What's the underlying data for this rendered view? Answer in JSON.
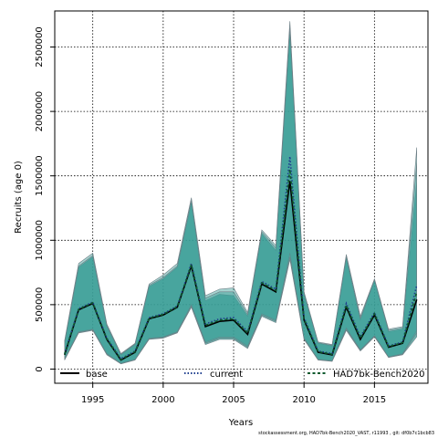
{
  "chart_data": {
    "type": "area",
    "title": "",
    "xlabel": "Years",
    "ylabel": "Recruits (age 0)",
    "xlim": [
      1992.3,
      2018.8
    ],
    "ylim": [
      -110000,
      2780000
    ],
    "x_ticks": [
      1995,
      2000,
      2005,
      2010,
      2015
    ],
    "y_ticks": [
      0,
      500000,
      1000000,
      1500000,
      2000000,
      2500000
    ],
    "y_tick_labels": [
      "0",
      "500000",
      "1000000",
      "1500000",
      "2000000",
      "2500000"
    ],
    "grid": true,
    "legend_position": "bottom",
    "fill_color": "#3a9e96",
    "x": [
      1993,
      1994,
      1995,
      1996,
      1997,
      1998,
      1999,
      2000,
      2001,
      2002,
      2003,
      2004,
      2005,
      2006,
      2007,
      2008,
      2009,
      2010,
      2011,
      2012,
      2013,
      2014,
      2015,
      2016,
      2017,
      2018
    ],
    "series": [
      {
        "name": "base",
        "color": "#000000",
        "dash": "solid",
        "values": [
          110000,
          460000,
          510000,
          230000,
          70000,
          130000,
          390000,
          420000,
          480000,
          800000,
          330000,
          370000,
          380000,
          270000,
          660000,
          600000,
          1460000,
          380000,
          130000,
          110000,
          480000,
          230000,
          420000,
          170000,
          200000,
          540000
        ],
        "lower": [
          70000,
          280000,
          300000,
          110000,
          40000,
          70000,
          230000,
          240000,
          280000,
          480000,
          190000,
          230000,
          230000,
          160000,
          410000,
          360000,
          850000,
          230000,
          70000,
          60000,
          300000,
          140000,
          250000,
          90000,
          110000,
          250000
        ],
        "upper": [
          200000,
          790000,
          870000,
          330000,
          110000,
          190000,
          640000,
          700000,
          790000,
          1290000,
          530000,
          580000,
          570000,
          410000,
          1050000,
          920000,
          2600000,
          580000,
          200000,
          180000,
          860000,
          380000,
          690000,
          290000,
          310000,
          1450000
        ]
      },
      {
        "name": "current",
        "color": "#1f3f8f",
        "dash": "dotted",
        "values": [
          120000,
          470000,
          520000,
          240000,
          80000,
          140000,
          400000,
          430000,
          490000,
          820000,
          350000,
          390000,
          400000,
          290000,
          680000,
          620000,
          1650000,
          400000,
          140000,
          120000,
          510000,
          250000,
          440000,
          180000,
          210000,
          650000
        ],
        "lower": [
          80000,
          290000,
          310000,
          120000,
          45000,
          75000,
          240000,
          250000,
          290000,
          500000,
          210000,
          250000,
          250000,
          180000,
          430000,
          380000,
          900000,
          240000,
          75000,
          65000,
          320000,
          150000,
          260000,
          95000,
          120000,
          300000
        ],
        "upper": [
          220000,
          820000,
          900000,
          350000,
          120000,
          200000,
          660000,
          730000,
          820000,
          1330000,
          570000,
          620000,
          630000,
          440000,
          1080000,
          960000,
          2700000,
          600000,
          210000,
          190000,
          890000,
          410000,
          700000,
          310000,
          330000,
          1720000
        ]
      },
      {
        "name": "HAD7bk-Bench2020",
        "color": "#0e5a2e",
        "dash": "dashed",
        "values": [
          115000,
          465000,
          515000,
          235000,
          75000,
          135000,
          395000,
          425000,
          485000,
          810000,
          340000,
          380000,
          390000,
          280000,
          670000,
          610000,
          1550000,
          390000,
          135000,
          115000,
          495000,
          240000,
          430000,
          175000,
          205000,
          600000
        ],
        "lower": [
          75000,
          285000,
          305000,
          115000,
          42000,
          72000,
          235000,
          245000,
          285000,
          490000,
          200000,
          240000,
          240000,
          170000,
          420000,
          370000,
          870000,
          235000,
          72000,
          62000,
          310000,
          145000,
          255000,
          92000,
          115000,
          280000
        ],
        "upper": [
          210000,
          800000,
          880000,
          340000,
          115000,
          195000,
          650000,
          710000,
          800000,
          1310000,
          550000,
          600000,
          600000,
          425000,
          1065000,
          940000,
          2650000,
          590000,
          205000,
          185000,
          875000,
          395000,
          695000,
          300000,
          320000,
          1600000
        ]
      }
    ]
  },
  "footer_text": "stockassessment.org,  HAD7bk-Bench2020_VAST,  r11993 ,  git:  df0b7c1bcb83"
}
